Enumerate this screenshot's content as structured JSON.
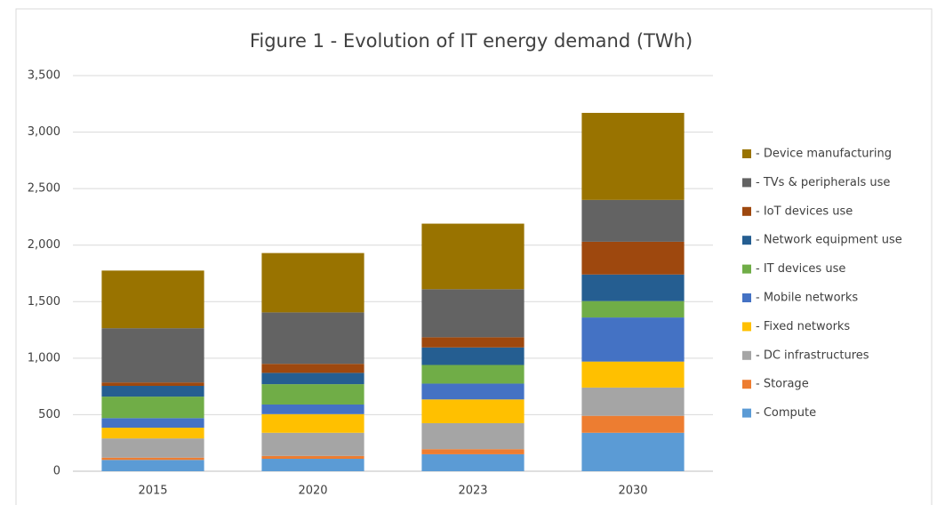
{
  "chart_data": {
    "type": "stacked_bar",
    "title": "Figure 1 - Evolution  of IT energy demand (TWh)",
    "categories": [
      "2015",
      "2020",
      "2023",
      "2030"
    ],
    "series": [
      {
        "name": "- Compute",
        "color": "#5b9bd5",
        "values": [
          100,
          110,
          150,
          340
        ]
      },
      {
        "name": "- Storage",
        "color": "#ed7d31",
        "values": [
          20,
          25,
          45,
          150
        ]
      },
      {
        "name": "- DC infrastructures",
        "color": "#a5a5a5",
        "values": [
          170,
          205,
          230,
          250
        ]
      },
      {
        "name": "- Fixed networks",
        "color": "#ffc000",
        "values": [
          95,
          165,
          210,
          230
        ]
      },
      {
        "name": "- Mobile networks",
        "color": "#4472c4",
        "values": [
          85,
          85,
          140,
          390
        ]
      },
      {
        "name": "- IT devices use",
        "color": "#70ad47",
        "values": [
          190,
          180,
          165,
          145
        ]
      },
      {
        "name": "- Network equipment use",
        "color": "#255e91",
        "values": [
          95,
          100,
          155,
          235
        ]
      },
      {
        "name": "- IoT devices use",
        "color": "#9e480e",
        "values": [
          30,
          80,
          90,
          290
        ]
      },
      {
        "name": "- TVs & peripherals use",
        "color": "#636363",
        "values": [
          480,
          455,
          425,
          370
        ]
      },
      {
        "name": "- Device manufacturing",
        "color": "#997300",
        "values": [
          510,
          525,
          580,
          770
        ]
      }
    ],
    "ylim": [
      0,
      3500
    ],
    "yticks": [
      0,
      500,
      {
        "value": 1000,
        "label": "1,000"
      },
      {
        "value": 1500,
        "label": "1,500"
      },
      {
        "value": 2000,
        "label": "2,000"
      },
      {
        "value": 2500,
        "label": "2,500"
      },
      {
        "value": 3000,
        "label": "3,000"
      },
      {
        "value": 3500,
        "label": "3,500"
      }
    ],
    "grid": true,
    "legend": "right"
  }
}
